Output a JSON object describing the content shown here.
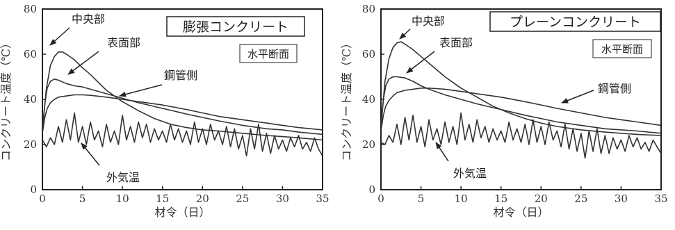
{
  "chart_data": [
    {
      "type": "line",
      "title": "膨張コンクリート",
      "section_label": "水平断面",
      "xlabel": "材令（日）",
      "ylabel": "コンクリート温度（℃）",
      "xlim": [
        0,
        35
      ],
      "ylim": [
        0,
        80
      ],
      "xticks": [
        "0",
        "5",
        "10",
        "15",
        "20",
        "25",
        "30",
        "35"
      ],
      "yticks": [
        "0",
        "20",
        "40",
        "60",
        "80"
      ],
      "grid": false,
      "series": [
        {
          "name": "中央部",
          "x": [
            0,
            0.5,
            1,
            1.5,
            2,
            2.5,
            3,
            4,
            5,
            6,
            8,
            10,
            12,
            14,
            16,
            18,
            20,
            22,
            25,
            28,
            30,
            32,
            35
          ],
          "y": [
            27,
            45,
            55,
            59,
            61,
            61,
            60,
            57.5,
            54,
            51,
            44,
            39,
            35,
            31.5,
            29,
            27.5,
            26.5,
            26,
            25,
            24,
            23.5,
            23,
            22
          ]
        },
        {
          "name": "表面部",
          "x": [
            0,
            0.3,
            0.6,
            1,
            1.5,
            2,
            3,
            4,
            5,
            6,
            8,
            10,
            12,
            15,
            18,
            20,
            22,
            25,
            28,
            30,
            32,
            35
          ],
          "y": [
            26,
            38,
            45,
            48,
            49,
            48.5,
            47,
            46,
            45.5,
            44.5,
            42.5,
            40.5,
            38.5,
            36,
            33.5,
            32,
            30.5,
            28.5,
            27,
            26.5,
            25.5,
            24.5
          ]
        },
        {
          "name": "鋼管側",
          "x": [
            0,
            0.3,
            0.6,
            1,
            1.5,
            2,
            3,
            4,
            5,
            6,
            8,
            10,
            12,
            15,
            18,
            20,
            22,
            25,
            28,
            30,
            32,
            35
          ],
          "y": [
            25,
            32,
            36,
            38.5,
            40,
            41,
            41.5,
            42,
            42,
            41.8,
            41,
            40,
            39,
            37.5,
            35.5,
            34,
            32.5,
            31,
            29.5,
            28.5,
            27.5,
            26.5
          ]
        },
        {
          "name": "外気温",
          "x": [
            0,
            0.5,
            1,
            1.5,
            2,
            2.5,
            3,
            3.5,
            4,
            4.5,
            5,
            5.5,
            6,
            6.5,
            7,
            7.5,
            8,
            8.5,
            9,
            9.5,
            10,
            10.5,
            11,
            11.5,
            12,
            12.5,
            13,
            13.5,
            14,
            14.5,
            15,
            15.5,
            16,
            16.5,
            17,
            17.5,
            18,
            18.5,
            19,
            19.5,
            20,
            20.5,
            21,
            21.5,
            22,
            22.5,
            23,
            23.5,
            24,
            24.5,
            25,
            25.5,
            26,
            26.5,
            27,
            27.5,
            28,
            28.5,
            29,
            29.5,
            30,
            30.5,
            31,
            31.5,
            32,
            32.5,
            33,
            33.5,
            34,
            34.5,
            35
          ],
          "y": [
            22,
            19,
            23,
            20,
            28,
            21,
            31,
            22,
            34,
            21,
            28,
            20,
            30,
            22,
            26,
            19,
            29,
            21,
            26,
            20,
            33,
            22,
            28,
            21,
            30,
            23,
            29,
            21,
            27,
            22,
            26,
            21,
            29,
            22,
            27,
            21,
            26,
            20,
            30,
            21,
            27,
            20,
            29,
            22,
            26,
            20,
            28,
            19,
            27,
            18,
            24,
            15,
            27,
            18,
            29,
            17,
            25,
            16,
            24,
            18,
            22,
            17,
            23,
            19,
            24,
            18,
            21,
            17,
            23,
            18,
            15
          ]
        }
      ]
    },
    {
      "type": "line",
      "title": "プレーンコンクリート",
      "section_label": "水平断面",
      "xlabel": "材令（日）",
      "ylabel": "コンクリート温度（℃）",
      "xlim": [
        0,
        35
      ],
      "ylim": [
        0,
        80
      ],
      "xticks": [
        "0",
        "5",
        "10",
        "15",
        "20",
        "25",
        "30",
        "35"
      ],
      "yticks": [
        "0",
        "20",
        "40",
        "60",
        "80"
      ],
      "grid": false,
      "series": [
        {
          "name": "中央部",
          "x": [
            0,
            0.5,
            1,
            1.5,
            2,
            2.5,
            3,
            4,
            5,
            6,
            8,
            10,
            12,
            14,
            16,
            18,
            20,
            22,
            25,
            28,
            30,
            32,
            35
          ],
          "y": [
            28,
            48,
            58,
            63,
            65,
            65.5,
            64.5,
            62,
            59,
            56,
            50,
            45,
            41,
            37,
            34,
            31.5,
            29.5,
            28,
            26.5,
            25.5,
            25,
            24.5,
            24
          ]
        },
        {
          "name": "表面部",
          "x": [
            0,
            0.3,
            0.6,
            1,
            1.5,
            2,
            3,
            4,
            5,
            6,
            8,
            10,
            12,
            15,
            18,
            20,
            22,
            25,
            28,
            30,
            32,
            35
          ],
          "y": [
            28,
            40,
            46,
            49,
            50,
            50,
            49.5,
            48,
            46,
            44.5,
            42,
            40,
            38,
            35.5,
            33,
            31.5,
            30,
            28.5,
            27,
            26.5,
            26,
            25
          ]
        },
        {
          "name": "鋼管側",
          "x": [
            0,
            0.3,
            0.6,
            1,
            1.5,
            2,
            3,
            4,
            5,
            6,
            8,
            10,
            12,
            15,
            18,
            20,
            22,
            25,
            28,
            30,
            32,
            35
          ],
          "y": [
            26,
            33,
            37,
            39.5,
            41.5,
            43,
            44,
            44.5,
            45,
            45,
            44.5,
            43.5,
            42.5,
            41,
            39,
            37.5,
            36,
            34,
            32,
            31,
            30,
            28.5
          ]
        },
        {
          "name": "外気温",
          "x": [
            0,
            0.5,
            1,
            1.5,
            2,
            2.5,
            3,
            3.5,
            4,
            4.5,
            5,
            5.5,
            6,
            6.5,
            7,
            7.5,
            8,
            8.5,
            9,
            9.5,
            10,
            10.5,
            11,
            11.5,
            12,
            12.5,
            13,
            13.5,
            14,
            14.5,
            15,
            15.5,
            16,
            16.5,
            17,
            17.5,
            18,
            18.5,
            19,
            19.5,
            20,
            20.5,
            21,
            21.5,
            22,
            22.5,
            23,
            23.5,
            24,
            24.5,
            25,
            25.5,
            26,
            26.5,
            27,
            27.5,
            28,
            28.5,
            29,
            29.5,
            30,
            30.5,
            31,
            31.5,
            32,
            32.5,
            33,
            33.5,
            34,
            34.5,
            35
          ],
          "y": [
            21,
            20,
            24,
            21,
            29,
            20,
            32,
            22,
            33,
            21,
            28,
            19,
            31,
            22,
            27,
            20,
            30,
            21,
            28,
            20,
            34,
            22,
            29,
            21,
            31,
            23,
            28,
            21,
            27,
            22,
            26,
            21,
            30,
            22,
            27,
            21,
            29,
            20,
            31,
            21,
            28,
            20,
            30,
            22,
            26,
            19,
            29,
            18,
            27,
            17,
            25,
            14,
            26,
            17,
            27,
            16,
            24,
            16,
            23,
            18,
            22,
            17,
            24,
            19,
            23,
            18,
            21,
            17,
            22,
            19,
            16
          ]
        }
      ]
    }
  ]
}
